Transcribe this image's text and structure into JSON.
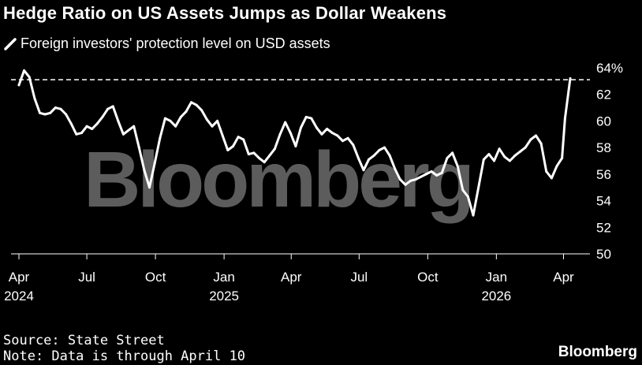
{
  "header": {
    "title": "Hedge Ratio on US Assets Jumps as Dollar Weakens"
  },
  "footer": {
    "source": "Source: State Street",
    "note": "Note: Data is through April 10",
    "brand": "Bloomberg"
  },
  "watermark": "Bloomberg",
  "colors": {
    "background": "#000000",
    "line": "#ffffff",
    "text": "#ffffff"
  },
  "chart_data": {
    "type": "line",
    "title": "Hedge Ratio on US Assets Jumps as Dollar Weakens",
    "legend": "top-left",
    "grid": false,
    "ylim": [
      50,
      64
    ],
    "y_ticks": [
      {
        "value": 64,
        "label": "64%"
      },
      {
        "value": 62,
        "label": "62"
      },
      {
        "value": 60,
        "label": "60"
      },
      {
        "value": 58,
        "label": "58"
      },
      {
        "value": 56,
        "label": "56"
      },
      {
        "value": 54,
        "label": "54"
      },
      {
        "value": 52,
        "label": "52"
      },
      {
        "value": 50,
        "label": "50"
      }
    ],
    "x_ticks": [
      {
        "date": "2024-04-01",
        "label": "Apr",
        "year": "2024"
      },
      {
        "date": "2024-07-01",
        "label": "Jul",
        "year": ""
      },
      {
        "date": "2024-10-01",
        "label": "Oct",
        "year": ""
      },
      {
        "date": "2025-01-01",
        "label": "Jan",
        "year": "2025"
      },
      {
        "date": "2025-04-01",
        "label": "Apr",
        "year": ""
      },
      {
        "date": "2025-07-01",
        "label": "Jul",
        "year": ""
      },
      {
        "date": "2025-10-01",
        "label": "Oct",
        "year": ""
      },
      {
        "date": "2026-01-01",
        "label": "Jan",
        "year": "2026"
      },
      {
        "date": "2026-04-01",
        "label": "Apr",
        "year": ""
      }
    ],
    "reference_line": {
      "value": 63.1,
      "style": "dashed"
    },
    "series": [
      {
        "name": "Foreign investors' protection level on USD assets",
        "points": [
          [
            "2024-04-01",
            62.7
          ],
          [
            "2024-04-08",
            63.8
          ],
          [
            "2024-04-15",
            63.3
          ],
          [
            "2024-04-22",
            61.7
          ],
          [
            "2024-04-29",
            60.6
          ],
          [
            "2024-05-06",
            60.5
          ],
          [
            "2024-05-13",
            60.6
          ],
          [
            "2024-05-20",
            61.0
          ],
          [
            "2024-05-27",
            60.9
          ],
          [
            "2024-06-03",
            60.5
          ],
          [
            "2024-06-10",
            59.8
          ],
          [
            "2024-06-17",
            59.0
          ],
          [
            "2024-06-24",
            59.1
          ],
          [
            "2024-07-01",
            59.6
          ],
          [
            "2024-07-08",
            59.4
          ],
          [
            "2024-07-15",
            59.8
          ],
          [
            "2024-07-22",
            60.3
          ],
          [
            "2024-07-29",
            60.9
          ],
          [
            "2024-08-05",
            61.1
          ],
          [
            "2024-08-12",
            60.0
          ],
          [
            "2024-08-19",
            59.0
          ],
          [
            "2024-08-26",
            59.3
          ],
          [
            "2024-09-02",
            59.6
          ],
          [
            "2024-09-09",
            58.0
          ],
          [
            "2024-09-16",
            56.3
          ],
          [
            "2024-09-23",
            55.0
          ],
          [
            "2024-09-30",
            56.8
          ],
          [
            "2024-10-07",
            58.7
          ],
          [
            "2024-10-14",
            60.2
          ],
          [
            "2024-10-21",
            60.0
          ],
          [
            "2024-10-28",
            59.6
          ],
          [
            "2024-11-04",
            60.3
          ],
          [
            "2024-11-11",
            60.7
          ],
          [
            "2024-11-18",
            61.4
          ],
          [
            "2024-11-25",
            61.2
          ],
          [
            "2024-12-02",
            60.8
          ],
          [
            "2024-12-09",
            60.1
          ],
          [
            "2024-12-16",
            59.6
          ],
          [
            "2024-12-23",
            60.0
          ],
          [
            "2024-12-30",
            58.9
          ],
          [
            "2025-01-06",
            57.8
          ],
          [
            "2025-01-13",
            58.1
          ],
          [
            "2025-01-20",
            58.8
          ],
          [
            "2025-01-27",
            58.6
          ],
          [
            "2025-02-03",
            57.5
          ],
          [
            "2025-02-10",
            57.6
          ],
          [
            "2025-02-17",
            57.2
          ],
          [
            "2025-02-24",
            56.9
          ],
          [
            "2025-03-03",
            57.4
          ],
          [
            "2025-03-10",
            57.9
          ],
          [
            "2025-03-17",
            59.0
          ],
          [
            "2025-03-24",
            59.9
          ],
          [
            "2025-03-31",
            59.1
          ],
          [
            "2025-04-07",
            58.1
          ],
          [
            "2025-04-14",
            59.5
          ],
          [
            "2025-04-21",
            60.3
          ],
          [
            "2025-04-28",
            60.2
          ],
          [
            "2025-05-05",
            59.5
          ],
          [
            "2025-05-12",
            59.0
          ],
          [
            "2025-05-19",
            59.4
          ],
          [
            "2025-05-26",
            59.1
          ],
          [
            "2025-06-02",
            58.9
          ],
          [
            "2025-06-09",
            58.5
          ],
          [
            "2025-06-16",
            58.7
          ],
          [
            "2025-06-23",
            58.2
          ],
          [
            "2025-06-30",
            57.2
          ],
          [
            "2025-07-07",
            56.3
          ],
          [
            "2025-07-14",
            57.1
          ],
          [
            "2025-07-21",
            57.4
          ],
          [
            "2025-07-28",
            57.8
          ],
          [
            "2025-08-04",
            58.0
          ],
          [
            "2025-08-11",
            57.4
          ],
          [
            "2025-08-18",
            56.4
          ],
          [
            "2025-08-25",
            55.6
          ],
          [
            "2025-09-01",
            55.2
          ],
          [
            "2025-09-08",
            55.5
          ],
          [
            "2025-09-15",
            55.6
          ],
          [
            "2025-09-22",
            55.8
          ],
          [
            "2025-09-29",
            56.0
          ],
          [
            "2025-10-06",
            56.2
          ],
          [
            "2025-10-13",
            55.9
          ],
          [
            "2025-10-20",
            56.1
          ],
          [
            "2025-10-27",
            57.2
          ],
          [
            "2025-11-03",
            57.6
          ],
          [
            "2025-11-10",
            56.6
          ],
          [
            "2025-11-17",
            54.8
          ],
          [
            "2025-11-24",
            54.3
          ],
          [
            "2025-12-01",
            52.9
          ],
          [
            "2025-12-08",
            55.0
          ],
          [
            "2025-12-15",
            57.1
          ],
          [
            "2025-12-22",
            57.5
          ],
          [
            "2025-12-29",
            57.0
          ],
          [
            "2026-01-05",
            57.9
          ],
          [
            "2026-01-12",
            57.3
          ],
          [
            "2026-01-19",
            57.0
          ],
          [
            "2026-01-26",
            57.4
          ],
          [
            "2026-02-02",
            57.7
          ],
          [
            "2026-02-09",
            58.0
          ],
          [
            "2026-02-16",
            58.6
          ],
          [
            "2026-02-23",
            58.9
          ],
          [
            "2026-03-02",
            58.3
          ],
          [
            "2026-03-09",
            56.2
          ],
          [
            "2026-03-16",
            55.7
          ],
          [
            "2026-03-23",
            56.6
          ],
          [
            "2026-03-30",
            57.2
          ],
          [
            "2026-04-03",
            60.2
          ],
          [
            "2026-04-10",
            63.2
          ]
        ]
      }
    ]
  }
}
